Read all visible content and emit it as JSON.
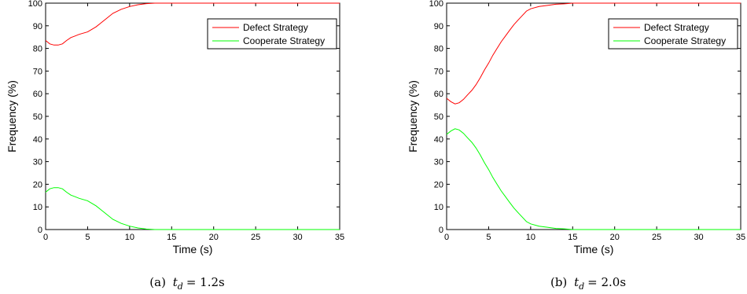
{
  "chart_data": [
    {
      "type": "line",
      "caption": "(a) t_d = 1.2s",
      "caption_prefix": "(a)",
      "caption_var": "t",
      "caption_sub": "d",
      "caption_value": "= 1.2s",
      "xlabel": "Time (s)",
      "ylabel": "Frequency (%)",
      "xlim": [
        0,
        35
      ],
      "ylim": [
        0,
        100
      ],
      "xticks": [
        0,
        5,
        10,
        15,
        20,
        25,
        30,
        35
      ],
      "yticks": [
        0,
        10,
        20,
        30,
        40,
        50,
        60,
        70,
        80,
        90,
        100
      ],
      "grid": false,
      "legend_position": "top-right",
      "series": [
        {
          "name": "Defect Strategy",
          "color": "#ff0000",
          "x": [
            0,
            0.5,
            1,
            1.5,
            2,
            2.5,
            3,
            3.5,
            4,
            5,
            6,
            7,
            8,
            9,
            10,
            11,
            12,
            13,
            15,
            20,
            25,
            30,
            35
          ],
          "y": [
            83.5,
            82,
            81.5,
            81.5,
            82,
            83.5,
            84.8,
            85.5,
            86.2,
            87.3,
            89.5,
            92.5,
            95.5,
            97.3,
            98.5,
            99.3,
            99.8,
            100,
            100,
            100,
            100,
            100,
            100
          ]
        },
        {
          "name": "Cooperate Strategy",
          "color": "#00ff00",
          "x": [
            0,
            0.5,
            1,
            1.5,
            2,
            2.5,
            3,
            3.5,
            4,
            5,
            6,
            7,
            8,
            9,
            10,
            11,
            12,
            13,
            15,
            20,
            25,
            30,
            35
          ],
          "y": [
            16.5,
            18,
            18.5,
            18.5,
            18,
            16.5,
            15.2,
            14.5,
            13.8,
            12.7,
            10.5,
            7.5,
            4.5,
            2.7,
            1.5,
            0.7,
            0.2,
            0,
            0,
            0,
            0,
            0,
            0
          ]
        }
      ]
    },
    {
      "type": "line",
      "caption": "(b) t_d = 2.0s",
      "caption_prefix": "(b)",
      "caption_var": "t",
      "caption_sub": "d",
      "caption_value": "= 2.0s",
      "xlabel": "Time (s)",
      "ylabel": "Frequency (%)",
      "xlim": [
        0,
        35
      ],
      "ylim": [
        0,
        100
      ],
      "xticks": [
        0,
        5,
        10,
        15,
        20,
        25,
        30,
        35
      ],
      "yticks": [
        0,
        10,
        20,
        30,
        40,
        50,
        60,
        70,
        80,
        90,
        100
      ],
      "grid": false,
      "legend_position": "top-right",
      "series": [
        {
          "name": "Defect Strategy",
          "color": "#ff0000",
          "x": [
            0,
            0.5,
            1,
            1.5,
            2,
            2.5,
            3,
            3.5,
            4,
            4.5,
            5,
            5.5,
            6,
            6.5,
            7,
            7.5,
            8,
            8.5,
            9,
            9.5,
            10,
            11,
            12,
            13,
            14,
            15,
            20,
            25,
            30,
            35
          ],
          "y": [
            58,
            56.5,
            55.5,
            56,
            57.5,
            59.5,
            61.5,
            64,
            67,
            70.5,
            73.5,
            77,
            80,
            83,
            85.5,
            88,
            90.5,
            92.5,
            94.5,
            96.5,
            97.5,
            98.5,
            99,
            99.5,
            99.7,
            100,
            100,
            100,
            100,
            100
          ]
        },
        {
          "name": "Cooperate Strategy",
          "color": "#00ff00",
          "x": [
            0,
            0.5,
            1,
            1.5,
            2,
            2.5,
            3,
            3.5,
            4,
            4.5,
            5,
            5.5,
            6,
            6.5,
            7,
            7.5,
            8,
            8.5,
            9,
            9.5,
            10,
            11,
            12,
            13,
            14,
            15,
            20,
            25,
            30,
            35
          ],
          "y": [
            42,
            43.5,
            44.5,
            44,
            42.5,
            40.5,
            38.5,
            36,
            33,
            29.5,
            26.5,
            23,
            20,
            17,
            14.5,
            12,
            9.5,
            7.5,
            5.5,
            3.5,
            2.5,
            1.5,
            1,
            0.5,
            0.3,
            0,
            0,
            0,
            0,
            0
          ]
        }
      ]
    }
  ]
}
